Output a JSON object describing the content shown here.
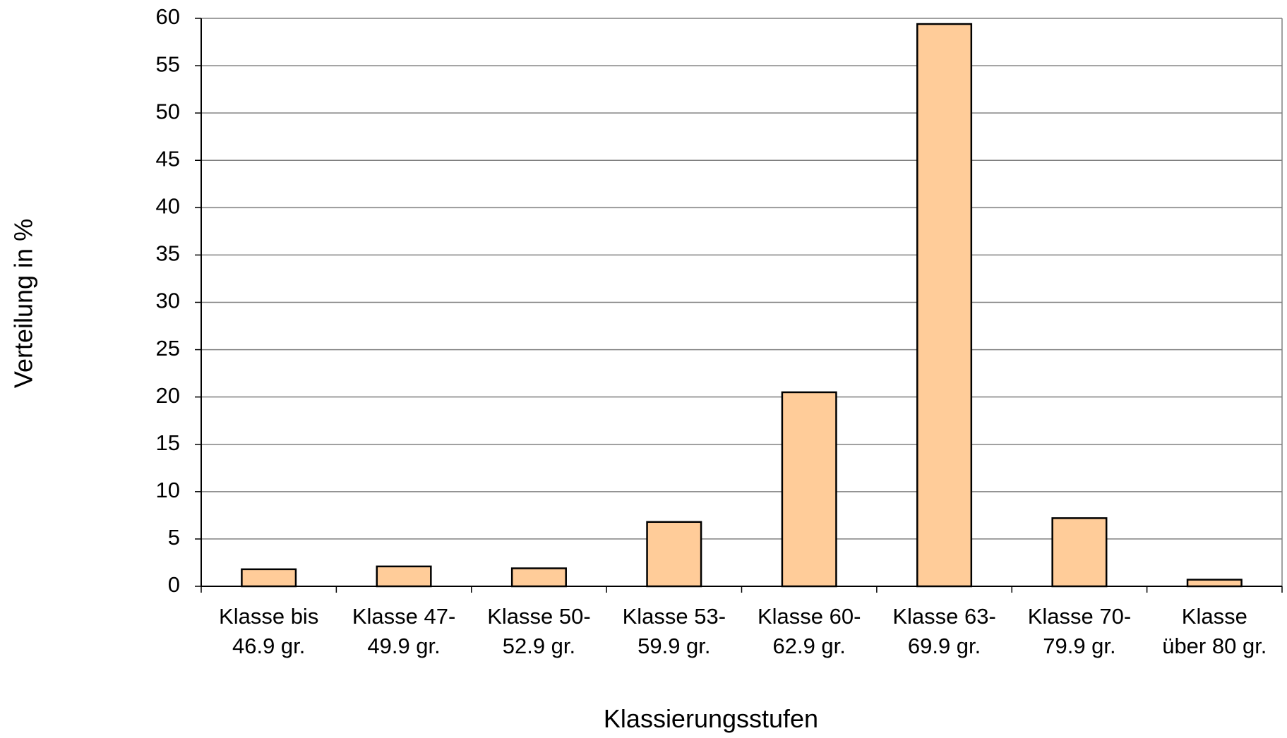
{
  "chart_data": {
    "type": "bar",
    "x_label": "Klassierungsstufen",
    "y_label": "Verteilung in %",
    "categories": [
      "Klasse bis\n46.9 gr.",
      "Klasse 47-\n49.9 gr.",
      "Klasse 50-\n52.9 gr.",
      "Klasse 53-\n59.9 gr.",
      "Klasse 60-\n62.9 gr.",
      "Klasse 63-\n69.9 gr.",
      "Klasse 70-\n79.9 gr.",
      "Klasse\nüber 80 gr."
    ],
    "values": [
      1.8,
      2.1,
      1.9,
      6.8,
      20.5,
      59.4,
      7.2,
      0.7
    ],
    "color": "#FFCC99",
    "ylim": [
      0,
      60
    ],
    "yticks": [
      0,
      5,
      10,
      15,
      20,
      25,
      30,
      35,
      40,
      45,
      50,
      55,
      60
    ],
    "grid": true
  }
}
